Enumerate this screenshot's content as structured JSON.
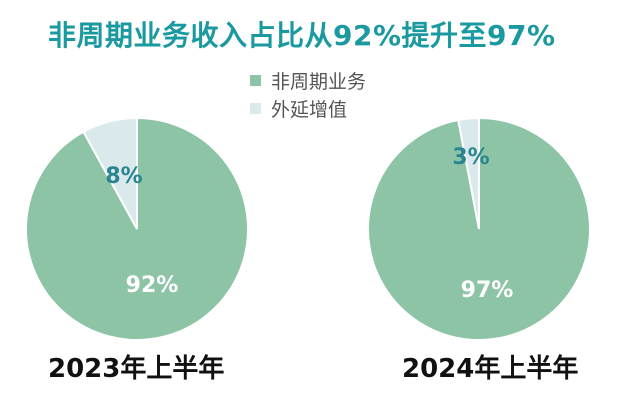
{
  "title": "非周期业务收入占比从92%提升至97%",
  "legend": [
    {
      "label": "非周期业务",
      "color": "#8cc4a5"
    },
    {
      "label": "外延增值",
      "color": "#d9e9ec"
    }
  ],
  "chart_data": [
    {
      "type": "pie",
      "caption": "2023年上半年",
      "slices": [
        {
          "name": "非周期业务",
          "value": 92,
          "label": "92%",
          "color": "#8cc4a5"
        },
        {
          "name": "外延增值",
          "value": 8,
          "label": "8%",
          "color": "#d9e9ec"
        }
      ]
    },
    {
      "type": "pie",
      "caption": "2024年上半年",
      "slices": [
        {
          "name": "非周期业务",
          "value": 97,
          "label": "97%",
          "color": "#8cc4a5"
        },
        {
          "name": "外延增值",
          "value": 3,
          "label": "3%",
          "color": "#d9e9ec"
        }
      ]
    }
  ]
}
